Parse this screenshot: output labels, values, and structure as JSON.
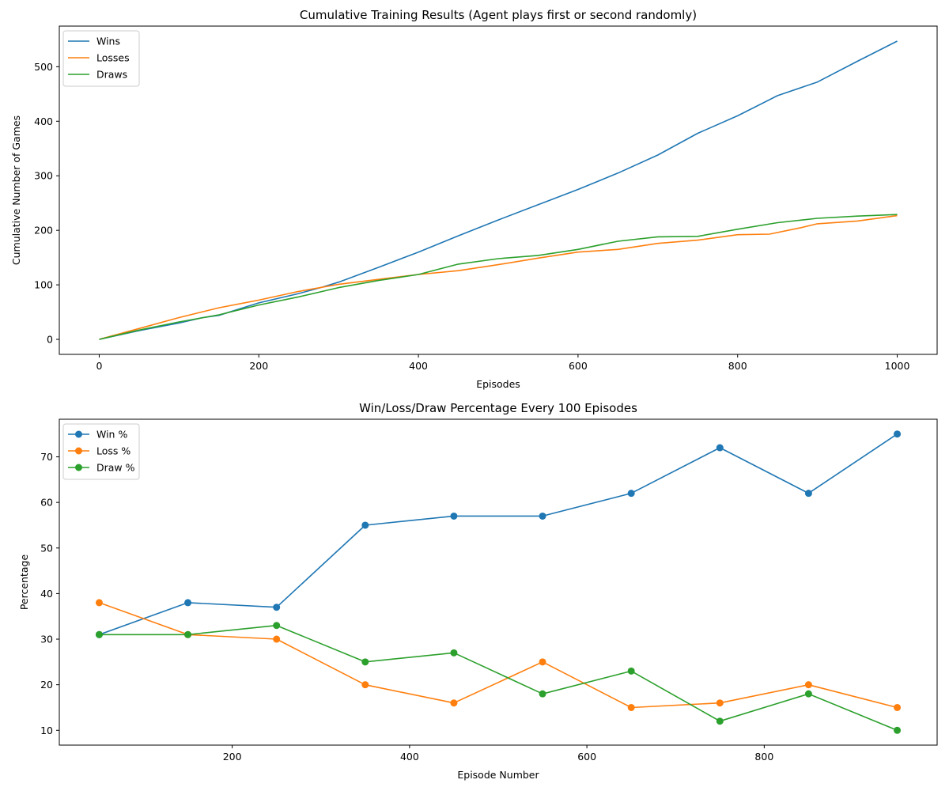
{
  "chart_data": [
    {
      "type": "line",
      "title": "Cumulative Training Results (Agent plays first or second randomly)",
      "xlabel": "Episodes",
      "ylabel": "Cumulative Number of Games",
      "xlim": [
        -50,
        1050
      ],
      "ylim": [
        -27.5,
        574.5
      ],
      "xticks": [
        0,
        200,
        400,
        600,
        800,
        1000
      ],
      "yticks": [
        0,
        100,
        200,
        300,
        400,
        500
      ],
      "grid": false,
      "legend_position": "top-left",
      "series": [
        {
          "name": "Wins",
          "color": "#1f77b4",
          "x": [
            0,
            50,
            100,
            130,
            150,
            200,
            250,
            280,
            300,
            350,
            400,
            450,
            500,
            550,
            600,
            650,
            700,
            750,
            800,
            850,
            900,
            950,
            1000
          ],
          "y": [
            0,
            16,
            30,
            40,
            44,
            67,
            84,
            96,
            105,
            132,
            160,
            190,
            219,
            247,
            275,
            305,
            338,
            378,
            410,
            447,
            472,
            510,
            547
          ]
        },
        {
          "name": "Losses",
          "color": "#ff7f0e",
          "x": [
            0,
            50,
            100,
            150,
            200,
            250,
            300,
            350,
            400,
            450,
            500,
            550,
            600,
            650,
            700,
            750,
            800,
            840,
            880,
            900,
            950,
            1000
          ],
          "y": [
            0,
            20,
            40,
            58,
            72,
            88,
            101,
            110,
            119,
            126,
            137,
            149,
            160,
            165,
            176,
            182,
            192,
            193,
            205,
            212,
            217,
            227
          ]
        },
        {
          "name": "Draws",
          "color": "#2ca02c",
          "x": [
            0,
            50,
            100,
            150,
            200,
            250,
            300,
            350,
            400,
            450,
            500,
            550,
            600,
            650,
            700,
            750,
            800,
            850,
            900,
            950,
            1000
          ],
          "y": [
            0,
            17,
            32,
            45,
            63,
            78,
            95,
            108,
            119,
            138,
            148,
            154,
            165,
            180,
            188,
            189,
            202,
            214,
            222,
            226,
            229
          ]
        }
      ]
    },
    {
      "type": "line",
      "title": "Win/Loss/Draw Percentage Every 100 Episodes",
      "xlabel": "Episode Number",
      "ylabel": "Percentage",
      "xlim": [
        5,
        995
      ],
      "ylim": [
        6.75,
        78.25
      ],
      "xticks": [
        200,
        400,
        600,
        800
      ],
      "yticks": [
        10,
        20,
        30,
        40,
        50,
        60,
        70
      ],
      "grid": false,
      "markers": true,
      "legend_position": "top-left",
      "x": [
        50,
        150,
        250,
        350,
        450,
        550,
        650,
        750,
        850,
        950
      ],
      "series": [
        {
          "name": "Win %",
          "color": "#1f77b4",
          "values": [
            31,
            38,
            37,
            55,
            57,
            57,
            62,
            72,
            62,
            75
          ]
        },
        {
          "name": "Loss %",
          "color": "#ff7f0e",
          "values": [
            38,
            31,
            30,
            20,
            16,
            25,
            15,
            16,
            20,
            15
          ]
        },
        {
          "name": "Draw %",
          "color": "#2ca02c",
          "values": [
            31,
            31,
            33,
            25,
            27,
            18,
            23,
            12,
            18,
            10
          ]
        }
      ]
    }
  ]
}
